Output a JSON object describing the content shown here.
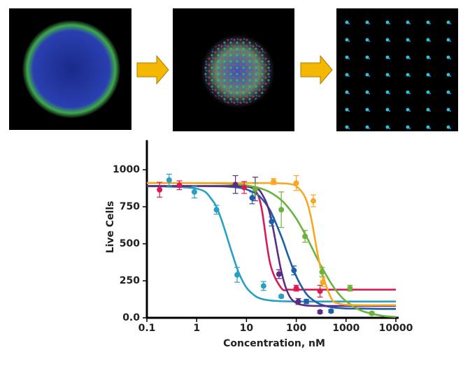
{
  "chart_data": {
    "type": "line",
    "log_x": true,
    "xlabel": "Concentration, nM",
    "ylabel": "Live Cells",
    "xlim": [
      0.1,
      10000
    ],
    "ylim": [
      0,
      1200
    ],
    "xticks": [
      0.1,
      1,
      10,
      100,
      1000,
      10000
    ],
    "yticks": [
      {
        "value": 0,
        "label": "0.0"
      },
      250,
      500,
      750,
      1000
    ],
    "curve_x": [
      0.1,
      1,
      2,
      3,
      5,
      7,
      10,
      15,
      20,
      30,
      50,
      70,
      100,
      150,
      200,
      300,
      500,
      700,
      1000,
      2000,
      5000,
      10000
    ],
    "series": [
      {
        "color": "#2a9fc4",
        "values": [
          890,
          872,
          800,
          682,
          449,
          304,
          204,
          147,
          128,
          117,
          112,
          111,
          110,
          110,
          110,
          110,
          110,
          110,
          110,
          110,
          110,
          110
        ],
        "points": {
          "x": [
            0.28,
            0.9,
            2.5,
            6.5,
            22,
            50
          ],
          "values": [
            930,
            850,
            730,
            290,
            215,
            145
          ],
          "errors": [
            40,
            40,
            30,
            50,
            30,
            10
          ]
        }
      },
      {
        "color": "#d81b55",
        "values": [
          890,
          890,
          890,
          890,
          890,
          889,
          887,
          859,
          745,
          365,
          201,
          191,
          190,
          190,
          190,
          190,
          190,
          190,
          190,
          190,
          190,
          190
        ],
        "points": {
          "x": [
            0.18,
            0.45,
            9,
            100,
            300
          ],
          "values": [
            865,
            895,
            880,
            200,
            180
          ],
          "errors": [
            50,
            30,
            40,
            20,
            40
          ]
        }
      },
      {
        "color": "#1f5ea8",
        "values": [
          890,
          890,
          889,
          888,
          884,
          879,
          867,
          841,
          807,
          724,
          550,
          412,
          280,
          174,
          129,
          92,
          72,
          66,
          63,
          62,
          60,
          60
        ],
        "points": {
          "x": [
            13,
            32,
            90,
            160,
            500
          ],
          "values": [
            810,
            650,
            320,
            110,
            45
          ],
          "errors": [
            40,
            30,
            30,
            15,
            10
          ]
        }
      },
      {
        "color": "#5b2c83",
        "values": [
          890,
          890,
          890,
          890,
          890,
          889,
          887,
          874,
          842,
          695,
          315,
          158,
          100,
          84,
          81,
          80,
          80,
          80,
          80,
          80,
          80,
          80
        ],
        "points": {
          "x": [
            6,
            15,
            45,
            110,
            300
          ],
          "values": [
            900,
            870,
            295,
            110,
            40
          ],
          "errors": [
            60,
            80,
            30,
            20,
            10
          ]
        }
      },
      {
        "color": "#6ab43e",
        "values": [
          910,
          909,
          908,
          907,
          903,
          900,
          894,
          883,
          872,
          847,
          795,
          742,
          670,
          566,
          483,
          364,
          233,
          165,
          112,
          49,
          15,
          6
        ],
        "points": {
          "x": [
            15,
            50,
            150,
            330,
            1200,
            3300
          ],
          "values": [
            870,
            730,
            550,
            310,
            200,
            30
          ],
          "errors": [
            40,
            120,
            40,
            30,
            20,
            10
          ]
        }
      },
      {
        "color": "#f7a823",
        "values": [
          910,
          910,
          910,
          910,
          910,
          910,
          910,
          910,
          910,
          910,
          908,
          905,
          889,
          815,
          670,
          354,
          134,
          98,
          88,
          85,
          85,
          85
        ],
        "points": {
          "x": [
            35,
            100,
            220,
            340
          ],
          "values": [
            920,
            910,
            790,
            240
          ],
          "errors": [
            20,
            50,
            40,
            30
          ]
        }
      }
    ]
  }
}
